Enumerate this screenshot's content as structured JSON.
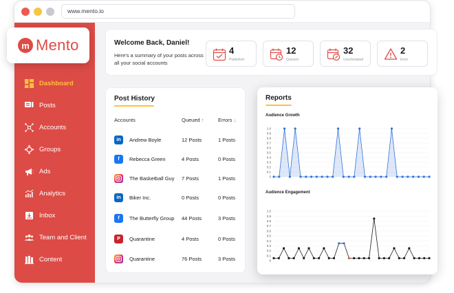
{
  "browser": {
    "url": "www.mento.io"
  },
  "brand": {
    "name": "Mento",
    "initial": "m",
    "color": "#dd4b46"
  },
  "sidebar": {
    "items": [
      {
        "label": "Dashboard",
        "icon": "dashboard-icon",
        "active": true
      },
      {
        "label": "Posts",
        "icon": "posts-icon"
      },
      {
        "label": "Accounts",
        "icon": "accounts-icon"
      },
      {
        "label": "Groups",
        "icon": "groups-icon"
      },
      {
        "label": "Ads",
        "icon": "megaphone-icon"
      },
      {
        "label": "Analytics",
        "icon": "analytics-icon"
      },
      {
        "label": "Inbox",
        "icon": "inbox-icon"
      },
      {
        "label": "Team and Client",
        "icon": "team-icon"
      },
      {
        "label": "Content",
        "icon": "content-icon"
      }
    ]
  },
  "welcome": {
    "title": "Welcome Back, Daniel!",
    "subtitle": "Here's a summary of your posts across all your social accounts"
  },
  "stats": [
    {
      "value": "4",
      "label": "Published",
      "icon": "calendar-check-icon"
    },
    {
      "value": "12",
      "label": "Queued",
      "icon": "calendar-clock-icon"
    },
    {
      "value": "32",
      "label": "Unscheduled",
      "icon": "calendar-edit-icon"
    },
    {
      "value": "2",
      "label": "Error",
      "icon": "warning-icon"
    }
  ],
  "post_history": {
    "title": "Post History",
    "columns": {
      "accounts": "Accounts",
      "queued": "Queued",
      "errors": "Errors"
    },
    "rows": [
      {
        "network": "linkedin",
        "account": "Andrew Boyle",
        "queued": "12 Posts",
        "errors": "1 Posts"
      },
      {
        "network": "facebook",
        "account": "Rebecca Green",
        "queued": "4 Posts",
        "errors": "0 Posts"
      },
      {
        "network": "instagram",
        "account": "The Basketball Guy",
        "queued": "7 Posts",
        "errors": "1 Posts"
      },
      {
        "network": "linkedin",
        "account": "Biker Inc.",
        "queued": "0 Posts",
        "errors": "0 Posts"
      },
      {
        "network": "facebook",
        "account": "The Butterfly Group",
        "queued": "44 Posts",
        "errors": "3 Posts"
      },
      {
        "network": "pinterest",
        "account": "Quarantine",
        "queued": "4 Posts",
        "errors": "0 Posts"
      },
      {
        "network": "instagram",
        "account": "Quarantine",
        "queued": "76 Posts",
        "errors": "3 Posts"
      }
    ]
  },
  "reports": {
    "title": "Reports",
    "colors": {
      "accent": "#ffc13b",
      "growth": "#2f73d9",
      "engagement": "#1b1b1f"
    }
  },
  "chart_data": [
    {
      "type": "line",
      "title": "Audience Growth",
      "ylim": [
        0,
        1.0
      ],
      "yticks": [
        "1.0",
        "0.9",
        "0.8",
        "0.7",
        "0.6",
        "0.5",
        "0.4",
        "0.3",
        "0.2",
        "0.1",
        "0"
      ],
      "series": [
        {
          "values": [
            0,
            0,
            1.0,
            0,
            1.0,
            0,
            0,
            0,
            0,
            0,
            0,
            0,
            1.0,
            0,
            0,
            0,
            1.0,
            0,
            0,
            0,
            0,
            0,
            1.0,
            0,
            0,
            0,
            0,
            0,
            0,
            0
          ]
        }
      ]
    },
    {
      "type": "line",
      "title": "Audience Engagement",
      "ylim": [
        0,
        1.0
      ],
      "yticks": [
        "1.0",
        "0.9",
        "0.8",
        "0.7",
        "0.6",
        "0.5",
        "0.4",
        "0.3",
        "0.2",
        "0.1",
        "0"
      ],
      "series": [
        {
          "values": [
            0.05,
            0.05,
            0.25,
            0.05,
            0.05,
            0.25,
            0.05,
            0.25,
            0.05,
            0.05,
            0.25,
            0.05,
            0.05,
            0.35,
            0.35,
            0.05,
            0.05,
            0.05,
            0.05,
            0.05,
            0.85,
            0.05,
            0.05,
            0.05,
            0.25,
            0.05,
            0.05,
            0.25,
            0.05,
            0.05,
            0.05,
            0.05
          ]
        }
      ]
    }
  ]
}
